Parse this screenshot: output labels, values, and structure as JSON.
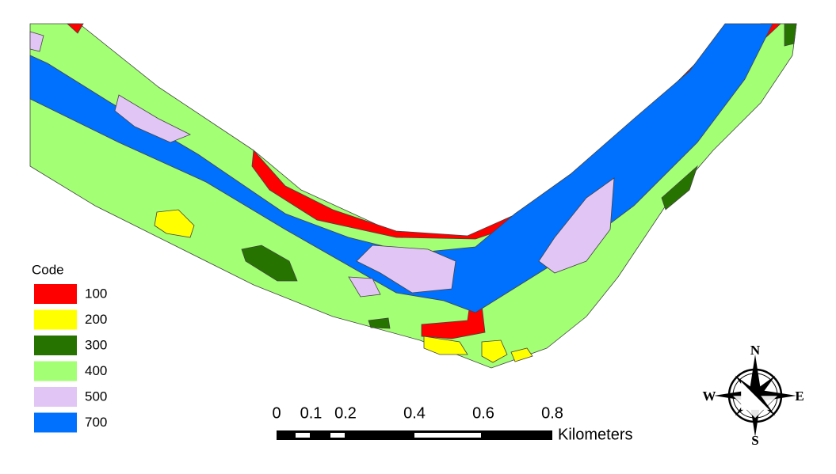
{
  "legend": {
    "title": "Code",
    "items": [
      {
        "label": 100,
        "color": "#ff0000"
      },
      {
        "label": 200,
        "color": "#ffff00"
      },
      {
        "label": 300,
        "color": "#267300"
      },
      {
        "label": 400,
        "color": "#a3ff73"
      },
      {
        "label": 500,
        "color": "#e1c5f5"
      },
      {
        "label": 700,
        "color": "#0070ff"
      }
    ]
  },
  "scale_bar": {
    "ticks": [
      0,
      0.1,
      0.2,
      0.4,
      0.6,
      0.8
    ],
    "unit": "Kilometers"
  },
  "compass": {
    "n": "N",
    "e": "E",
    "s": "S",
    "w": "W"
  }
}
